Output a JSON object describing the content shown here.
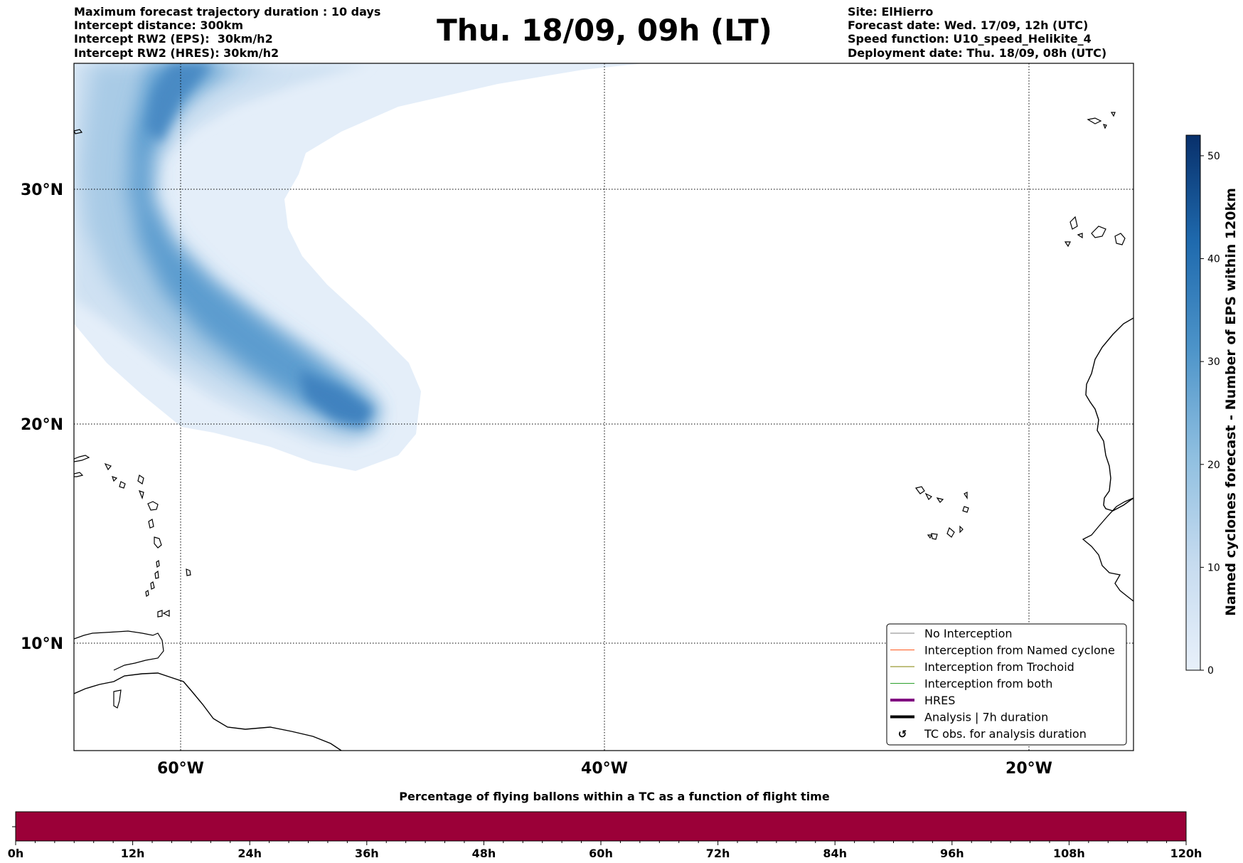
{
  "header": {
    "left_lines": [
      "Maximum forecast trajectory duration : 10 days",
      "Intercept distance: 300km",
      "Intercept RW2 (EPS):  30km/h2",
      "Intercept RW2 (HRES): 30km/h2"
    ],
    "title": "Thu. 18/09, 09h (LT)",
    "right_lines": [
      "Site: ElHierro",
      "Forecast date: Wed. 17/09, 12h (UTC)",
      "Speed function: U10_speed_Helikite_4",
      "Deployment date: Thu. 18/09, 08h (UTC)"
    ]
  },
  "map": {
    "lat_labels": [
      "30°N",
      "20°N",
      "10°N"
    ],
    "lon_labels": [
      "60°W",
      "40°W",
      "20°W"
    ],
    "legend": [
      {
        "label": "No Interception",
        "color": "#808080",
        "width": 1,
        "symbol": "line"
      },
      {
        "label": "Interception from Named cyclone",
        "color": "#ff5a1e",
        "width": 1,
        "symbol": "line"
      },
      {
        "label": "Interception from Trochoid",
        "color": "#808000",
        "width": 1,
        "symbol": "line"
      },
      {
        "label": "Interception from both",
        "color": "#2ca02c",
        "width": 1,
        "symbol": "line"
      },
      {
        "label": "HRES",
        "color": "#800080",
        "width": 4,
        "symbol": "line"
      },
      {
        "label": "Analysis | 7h duration",
        "color": "#000000",
        "width": 4,
        "symbol": "line"
      },
      {
        "label": "TC obs. for analysis duration",
        "color": "#000000",
        "width": 0,
        "symbol": "↺"
      }
    ]
  },
  "colorbar": {
    "label": "Named cyclones forecast - Number of EPS within 120km",
    "ticks": [
      "0",
      "10",
      "20",
      "30",
      "40",
      "50"
    ],
    "tick_values": [
      0,
      10,
      20,
      30,
      40,
      50
    ],
    "max_value": 52,
    "colors": [
      "#e6eff9",
      "#08306b"
    ]
  },
  "bottom_bar": {
    "title": "Percentage of flying ballons within a TC as a function of flight time",
    "ticks": [
      "0h",
      "12h",
      "24h",
      "36h",
      "48h",
      "60h",
      "72h",
      "84h",
      "96h",
      "108h",
      "120h"
    ],
    "fill_fraction": 1.0,
    "fill_color": "#9b0038"
  }
}
